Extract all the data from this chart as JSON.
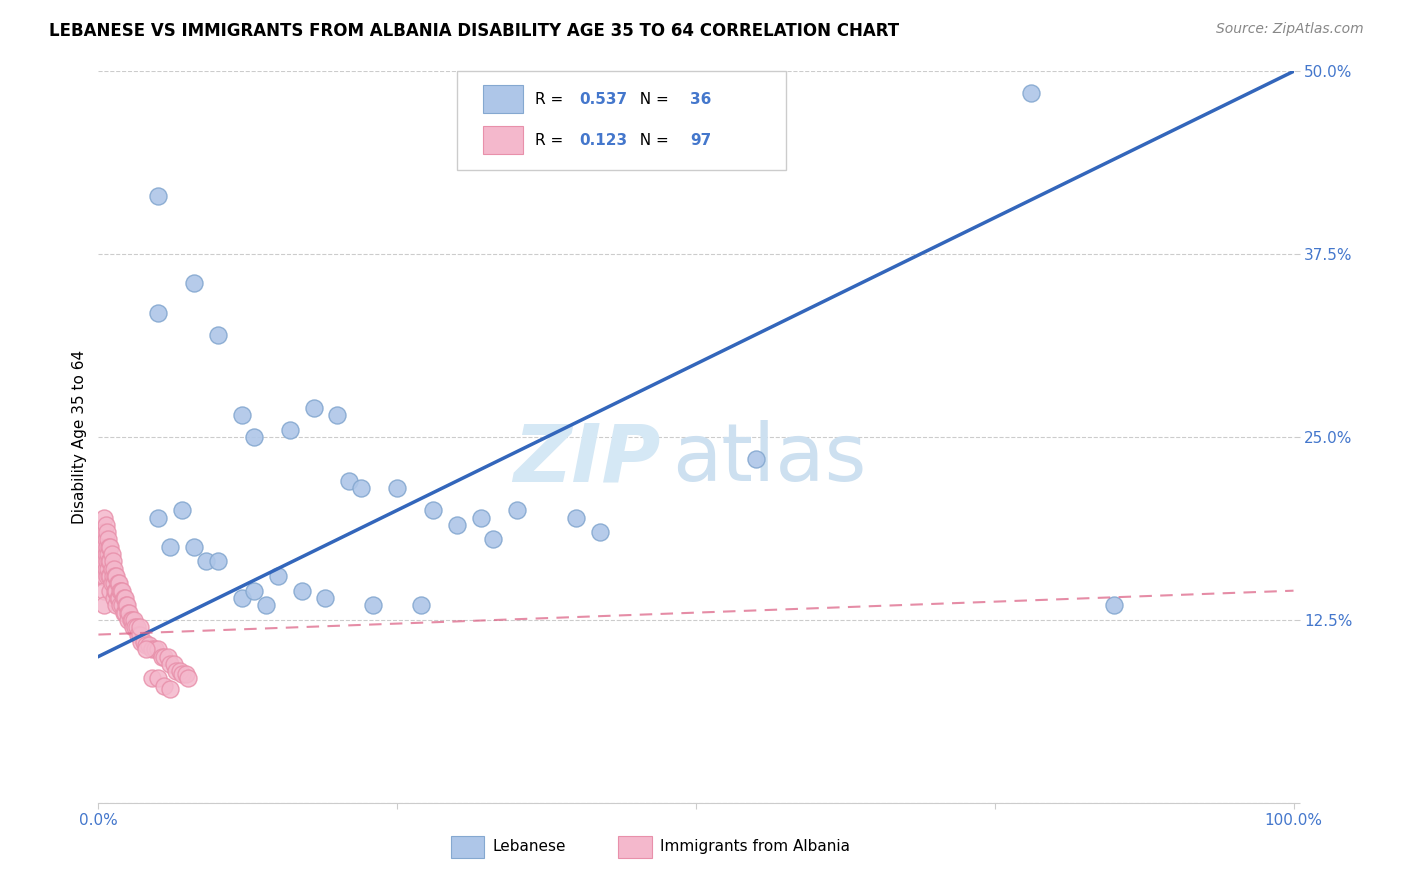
{
  "title": "LEBANESE VS IMMIGRANTS FROM ALBANIA DISABILITY AGE 35 TO 64 CORRELATION CHART",
  "source": "Source: ZipAtlas.com",
  "ylabel": "Disability Age 35 to 64",
  "xlim": [
    0.0,
    1.0
  ],
  "ylim": [
    0.0,
    0.5
  ],
  "xtick_labels": [
    "0.0%",
    "",
    "",
    "",
    "100.0%"
  ],
  "ytick_labels": [
    "",
    "12.5%",
    "25.0%",
    "37.5%",
    "50.0%"
  ],
  "legend_blue_label": "Lebanese",
  "legend_pink_label": "Immigrants from Albania",
  "blue_R": "0.537",
  "blue_N": "36",
  "pink_R": "0.123",
  "pink_N": "97",
  "blue_color": "#aec6e8",
  "pink_color": "#f4b8cc",
  "blue_edge_color": "#85a8d0",
  "pink_edge_color": "#e890aa",
  "blue_line_color": "#3366bb",
  "pink_line_color": "#dd6688",
  "watermark_zip": "ZIP",
  "watermark_atlas": "atlas",
  "watermark_color": "#d0e4f7",
  "background_color": "#ffffff",
  "grid_color": "#cccccc",
  "tick_color": "#4477cc",
  "blue_x": [
    0.05,
    0.05,
    0.08,
    0.1,
    0.12,
    0.13,
    0.16,
    0.18,
    0.2,
    0.21,
    0.22,
    0.25,
    0.28,
    0.3,
    0.32,
    0.35,
    0.4,
    0.42,
    0.55,
    0.78,
    0.05,
    0.06,
    0.07,
    0.08,
    0.09,
    0.1,
    0.12,
    0.13,
    0.14,
    0.15,
    0.17,
    0.19,
    0.23,
    0.27,
    0.85,
    0.33
  ],
  "blue_y": [
    0.415,
    0.335,
    0.355,
    0.32,
    0.265,
    0.25,
    0.255,
    0.27,
    0.265,
    0.22,
    0.215,
    0.215,
    0.2,
    0.19,
    0.195,
    0.2,
    0.195,
    0.185,
    0.235,
    0.485,
    0.195,
    0.175,
    0.2,
    0.175,
    0.165,
    0.165,
    0.14,
    0.145,
    0.135,
    0.155,
    0.145,
    0.14,
    0.135,
    0.135,
    0.135,
    0.18
  ],
  "pink_x": [
    0.001,
    0.002,
    0.002,
    0.003,
    0.003,
    0.003,
    0.003,
    0.004,
    0.004,
    0.004,
    0.005,
    0.005,
    0.005,
    0.005,
    0.005,
    0.005,
    0.005,
    0.006,
    0.006,
    0.006,
    0.006,
    0.007,
    0.007,
    0.007,
    0.007,
    0.008,
    0.008,
    0.008,
    0.009,
    0.009,
    0.009,
    0.01,
    0.01,
    0.01,
    0.01,
    0.011,
    0.011,
    0.011,
    0.012,
    0.012,
    0.013,
    0.013,
    0.013,
    0.014,
    0.014,
    0.015,
    0.015,
    0.015,
    0.016,
    0.016,
    0.017,
    0.017,
    0.018,
    0.018,
    0.019,
    0.02,
    0.02,
    0.021,
    0.021,
    0.022,
    0.022,
    0.023,
    0.024,
    0.025,
    0.025,
    0.026,
    0.027,
    0.028,
    0.029,
    0.03,
    0.031,
    0.032,
    0.033,
    0.035,
    0.036,
    0.038,
    0.04,
    0.042,
    0.045,
    0.047,
    0.05,
    0.053,
    0.055,
    0.058,
    0.06,
    0.063,
    0.065,
    0.068,
    0.07,
    0.073,
    0.075,
    0.035,
    0.04,
    0.045,
    0.05,
    0.055,
    0.06
  ],
  "pink_y": [
    0.165,
    0.175,
    0.155,
    0.185,
    0.175,
    0.165,
    0.155,
    0.18,
    0.17,
    0.16,
    0.195,
    0.185,
    0.175,
    0.165,
    0.155,
    0.145,
    0.135,
    0.19,
    0.18,
    0.17,
    0.16,
    0.185,
    0.175,
    0.165,
    0.155,
    0.18,
    0.17,
    0.16,
    0.175,
    0.165,
    0.155,
    0.175,
    0.165,
    0.155,
    0.145,
    0.17,
    0.16,
    0.15,
    0.165,
    0.155,
    0.16,
    0.15,
    0.14,
    0.155,
    0.145,
    0.155,
    0.145,
    0.135,
    0.15,
    0.14,
    0.15,
    0.14,
    0.145,
    0.135,
    0.145,
    0.145,
    0.135,
    0.14,
    0.13,
    0.14,
    0.13,
    0.135,
    0.135,
    0.13,
    0.125,
    0.13,
    0.125,
    0.125,
    0.12,
    0.125,
    0.12,
    0.12,
    0.115,
    0.115,
    0.11,
    0.11,
    0.108,
    0.108,
    0.105,
    0.105,
    0.105,
    0.1,
    0.1,
    0.1,
    0.095,
    0.095,
    0.09,
    0.09,
    0.088,
    0.088,
    0.085,
    0.12,
    0.105,
    0.085,
    0.085,
    0.08,
    0.078
  ]
}
